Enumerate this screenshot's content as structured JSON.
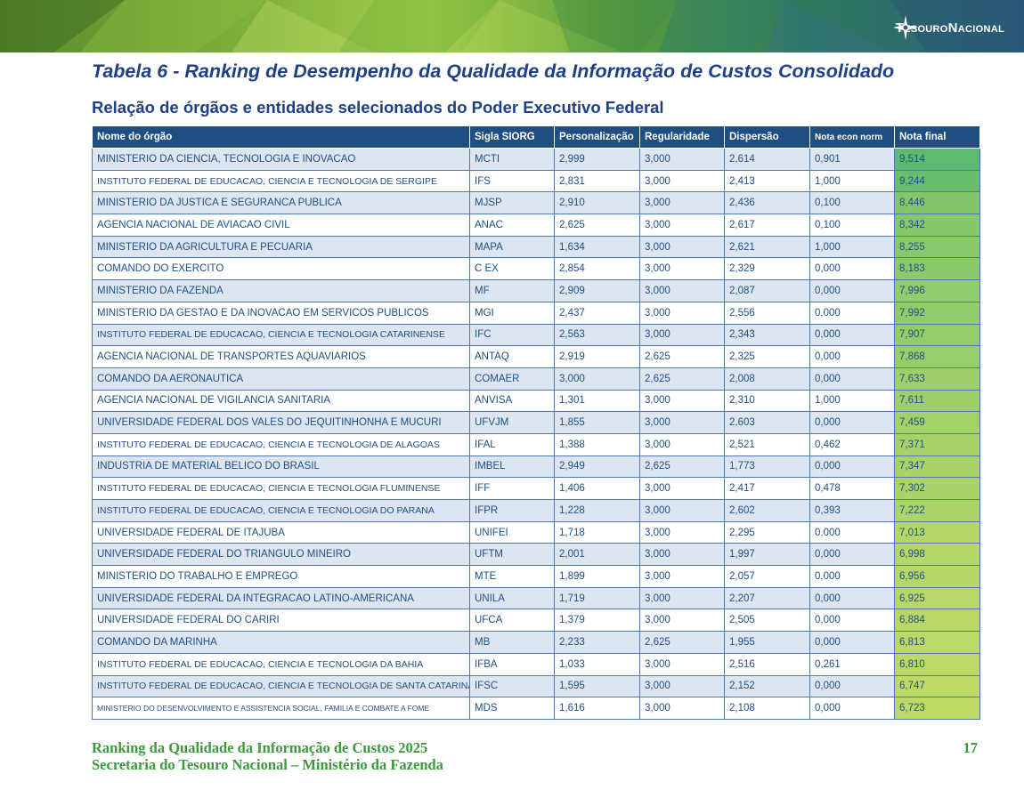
{
  "header": {
    "brand": "TesouroNacional"
  },
  "title": "Tabela 6 - Ranking de Desempenho da Qualidade da Informação de Custos Consolidado",
  "subtitle": "Relação de órgãos e entidades selecionados do Poder Executivo Federal",
  "table": {
    "columns": [
      "Nome do órgão",
      "Sigla SIORG",
      "Personalização",
      "Regularidade",
      "Dispersão",
      "Nota econ norm",
      "Nota final"
    ],
    "rows": [
      [
        "MINISTERIO DA CIENCIA, TECNOLOGIA E INOVACAO",
        "MCTI",
        "2,999",
        "3,000",
        "2,614",
        "0,901",
        "9,514"
      ],
      [
        "INSTITUTO FEDERAL DE EDUCACAO, CIENCIA E TECNOLOGIA DE SERGIPE",
        "IFS",
        "2,831",
        "3,000",
        "2,413",
        "1,000",
        "9,244"
      ],
      [
        "MINISTERIO DA JUSTICA E SEGURANCA PUBLICA",
        "MJSP",
        "2,910",
        "3,000",
        "2,436",
        "0,100",
        "8,446"
      ],
      [
        "AGENCIA NACIONAL DE AVIACAO CIVIL",
        "ANAC",
        "2,625",
        "3,000",
        "2,617",
        "0,100",
        "8,342"
      ],
      [
        "MINISTERIO DA AGRICULTURA E PECUARIA",
        "MAPA",
        "1,634",
        "3,000",
        "2,621",
        "1,000",
        "8,255"
      ],
      [
        "COMANDO DO EXERCITO",
        "C EX",
        "2,854",
        "3,000",
        "2,329",
        "0,000",
        "8,183"
      ],
      [
        "MINISTERIO DA FAZENDA",
        "MF",
        "2,909",
        "3,000",
        "2,087",
        "0,000",
        "7,996"
      ],
      [
        "MINISTERIO DA GESTAO E DA INOVACAO EM SERVICOS PUBLICOS",
        "MGI",
        "2,437",
        "3,000",
        "2,556",
        "0,000",
        "7,992"
      ],
      [
        "INSTITUTO FEDERAL DE EDUCACAO, CIENCIA E TECNOLOGIA CATARINENSE",
        "IFC",
        "2,563",
        "3,000",
        "2,343",
        "0,000",
        "7,907"
      ],
      [
        "AGENCIA NACIONAL DE TRANSPORTES AQUAVIARIOS",
        "ANTAQ",
        "2,919",
        "2,625",
        "2,325",
        "0,000",
        "7,868"
      ],
      [
        "COMANDO DA AERONAUTICA",
        "COMAER",
        "3,000",
        "2,625",
        "2,008",
        "0,000",
        "7,633"
      ],
      [
        "AGENCIA NACIONAL DE VIGILANCIA SANITARIA",
        "ANVISA",
        "1,301",
        "3,000",
        "2,310",
        "1,000",
        "7,611"
      ],
      [
        "UNIVERSIDADE FEDERAL DOS VALES DO JEQUITINHONHA E MUCURI",
        "UFVJM",
        "1,855",
        "3,000",
        "2,603",
        "0,000",
        "7,459"
      ],
      [
        "INSTITUTO FEDERAL DE EDUCACAO, CIENCIA E TECNOLOGIA DE ALAGOAS",
        "IFAL",
        "1,388",
        "3,000",
        "2,521",
        "0,462",
        "7,371"
      ],
      [
        "INDUSTRIA DE MATERIAL BELICO DO BRASIL",
        "IMBEL",
        "2,949",
        "2,625",
        "1,773",
        "0,000",
        "7,347"
      ],
      [
        "INSTITUTO FEDERAL DE EDUCACAO, CIENCIA E TECNOLOGIA FLUMINENSE",
        "IFF",
        "1,406",
        "3,000",
        "2,417",
        "0,478",
        "7,302"
      ],
      [
        "INSTITUTO FEDERAL DE EDUCACAO, CIENCIA E TECNOLOGIA DO PARANA",
        "IFPR",
        "1,228",
        "3,000",
        "2,602",
        "0,393",
        "7,222"
      ],
      [
        "UNIVERSIDADE FEDERAL DE ITAJUBA",
        "UNIFEI",
        "1,718",
        "3,000",
        "2,295",
        "0,000",
        "7,013"
      ],
      [
        "UNIVERSIDADE FEDERAL DO TRIANGULO MINEIRO",
        "UFTM",
        "2,001",
        "3,000",
        "1,997",
        "0,000",
        "6,998"
      ],
      [
        "MINISTERIO DO TRABALHO E EMPREGO",
        "MTE",
        "1,899",
        "3,000",
        "2,057",
        "0,000",
        "6,956"
      ],
      [
        "UNIVERSIDADE FEDERAL DA INTEGRACAO LATINO-AMERICANA",
        "UNILA",
        "1,719",
        "3,000",
        "2,207",
        "0,000",
        "6,925"
      ],
      [
        "UNIVERSIDADE FEDERAL DO CARIRI",
        "UFCA",
        "1,379",
        "3,000",
        "2,505",
        "0,000",
        "6,884"
      ],
      [
        "COMANDO DA MARINHA",
        "MB",
        "2,233",
        "2,625",
        "1,955",
        "0,000",
        "6,813"
      ],
      [
        "INSTITUTO FEDERAL DE EDUCACAO, CIENCIA E TECNOLOGIA DA BAHIA",
        "IFBA",
        "1,033",
        "3,000",
        "2,516",
        "0,261",
        "6,810"
      ],
      [
        "INSTITUTO FEDERAL DE EDUCACAO, CIENCIA E TECNOLOGIA DE SANTA CATARINA",
        "IFSC",
        "1,595",
        "3,000",
        "2,152",
        "0,000",
        "6,747"
      ],
      [
        "MINISTERIO DO DESENVOLVIMENTO E ASSISTENCIA SOCIAL, FAMILIA E COMBATE A FOME",
        "MDS",
        "1,616",
        "3,000",
        "2,108",
        "0,000",
        "6,723"
      ]
    ],
    "final_score_colors": {
      "high": "#5dbb6f",
      "low": "#bfd967"
    }
  },
  "footer": {
    "line1": "Ranking da Qualidade da Informação de Custos 2025",
    "line2": "Secretaria do Tesouro Nacional – Ministério da Fazenda",
    "page": "17"
  }
}
